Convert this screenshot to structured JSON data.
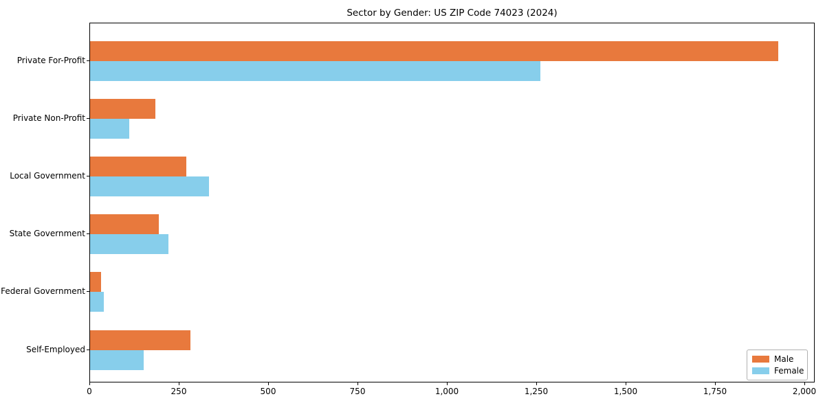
{
  "chart_data": {
    "type": "bar",
    "orientation": "horizontal",
    "title": "Sector by Gender: US ZIP Code 74023 (2024)",
    "categories": [
      "Private For-Profit",
      "Private Non-Profit",
      "Local Government",
      "State Government",
      "Federal Government",
      "Self-Employed"
    ],
    "series": [
      {
        "name": "Male",
        "color": "#E8793D",
        "values": [
          1925,
          183,
          270,
          192,
          30,
          280
        ]
      },
      {
        "name": "Female",
        "color": "#87CEEB",
        "values": [
          1260,
          110,
          333,
          220,
          38,
          150
        ]
      }
    ],
    "xlabel": "",
    "ylabel": "",
    "xlim": [
      0,
      2025
    ],
    "xticks": [
      0,
      250,
      500,
      750,
      1000,
      1250,
      1500,
      1750,
      2000
    ],
    "xtick_labels": [
      "0",
      "250",
      "500",
      "750",
      "1,000",
      "1,250",
      "1,500",
      "1,750",
      "2,000"
    ],
    "grid": false,
    "legend_position": "lower right",
    "axis_color": "#000000",
    "background_color": "#ffffff"
  }
}
